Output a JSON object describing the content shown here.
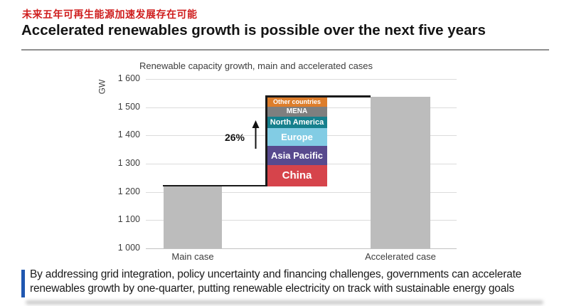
{
  "header": {
    "subtitle_cn": "未来五年可再生能源加速发展存在可能",
    "title": "Accelerated renewables growth is possible over the next five years"
  },
  "chart_data": {
    "type": "bar",
    "title": "Renewable capacity growth, main and accelerated cases",
    "ylabel": "GW",
    "ylim": [
      1000,
      1600
    ],
    "grid": true,
    "yticks": [
      {
        "label": "1 600",
        "value": 1600
      },
      {
        "label": "1 500",
        "value": 1500
      },
      {
        "label": "1 400",
        "value": 1400
      },
      {
        "label": "1 300",
        "value": 1300
      },
      {
        "label": "1 200",
        "value": 1200
      },
      {
        "label": "1 100",
        "value": 1100
      },
      {
        "label": "1 000",
        "value": 1000
      }
    ],
    "categories": [
      "Main case",
      "Accelerated case"
    ],
    "values": [
      1220,
      1536
    ],
    "bar_color": "#bcbcbc",
    "growth_annotation": {
      "label": "26%",
      "arrow": "up"
    },
    "stack_segments": [
      {
        "name": "China",
        "value": 76,
        "color": "#d6444b"
      },
      {
        "name": "Asia Pacific",
        "value": 66,
        "color": "#584a8e"
      },
      {
        "name": "Europe",
        "value": 64,
        "color": "#82cce4"
      },
      {
        "name": "North America",
        "value": 41,
        "color": "#16808d"
      },
      {
        "name": "MENA",
        "value": 35,
        "color": "#7f7f7f"
      },
      {
        "name": "Other countries",
        "value": 34,
        "color": "#dd7d2b"
      }
    ]
  },
  "footnote": {
    "text": "By addressing grid integration, policy uncertainty and financing challenges, governments can accelerate renewables growth by one-quarter, putting renewable electricity on track with sustainable energy goals",
    "accent_color": "#2057b0"
  }
}
